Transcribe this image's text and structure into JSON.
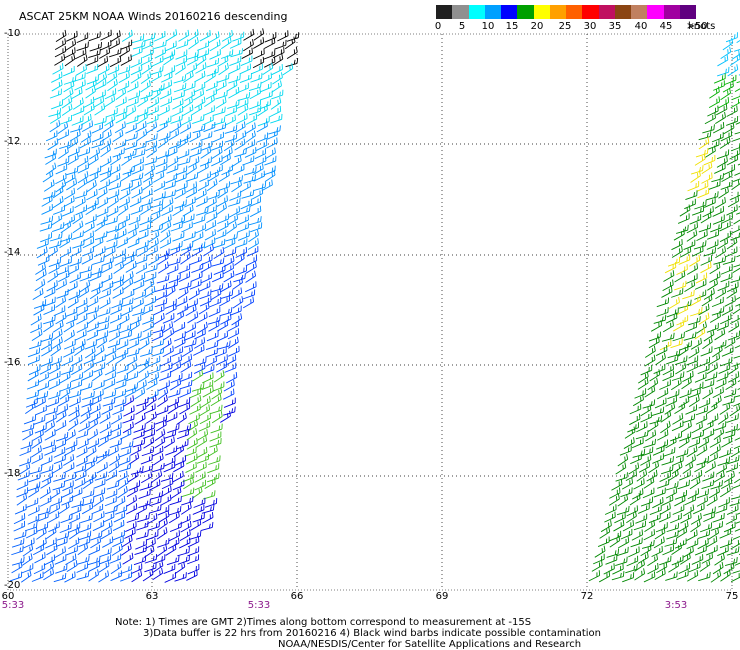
{
  "title": "ASCAT 25KM NOAA Winds 20160216 descending",
  "colorbar": {
    "colors": [
      "#202020",
      "#909090",
      "#00ffff",
      "#00a0ff",
      "#0000ff",
      "#00a000",
      "#ffff00",
      "#ffa000",
      "#ff6000",
      "#ff0000",
      "#c01060",
      "#8b4513",
      "#c08060",
      "#ff00ff",
      "#a000a0",
      "#600080"
    ],
    "ticks": [
      "0",
      "5",
      "10",
      "15",
      "20",
      "25",
      "30",
      "35",
      "40",
      "45",
      ">50"
    ],
    "unit": "knots"
  },
  "lat_labels": [
    "-10",
    "-12",
    "-14",
    "-16",
    "-18",
    "-20"
  ],
  "lon_labels": [
    "60",
    "63",
    "66",
    "69",
    "72",
    "75"
  ],
  "time_labels": [
    "5:33",
    "5:33",
    "3:53"
  ],
  "notes": {
    "line1": "Note: 1) Times are GMT 2)Times along bottom correspond to measurement at -15S",
    "line2": "3)Data buffer is 22 hrs from 20160216 4) Black wind barbs indicate possible contamination",
    "line3": "NOAA/NESDIS/Center for Satellite Applications and Research"
  },
  "swaths": [
    {
      "name": "west-swath",
      "lon_range": [
        60,
        65.8
      ],
      "lat_range": [
        -10,
        -20
      ]
    },
    {
      "name": "east-swath",
      "lon_range": [
        72,
        75
      ],
      "lat_range": [
        -10,
        -20
      ]
    }
  ]
}
